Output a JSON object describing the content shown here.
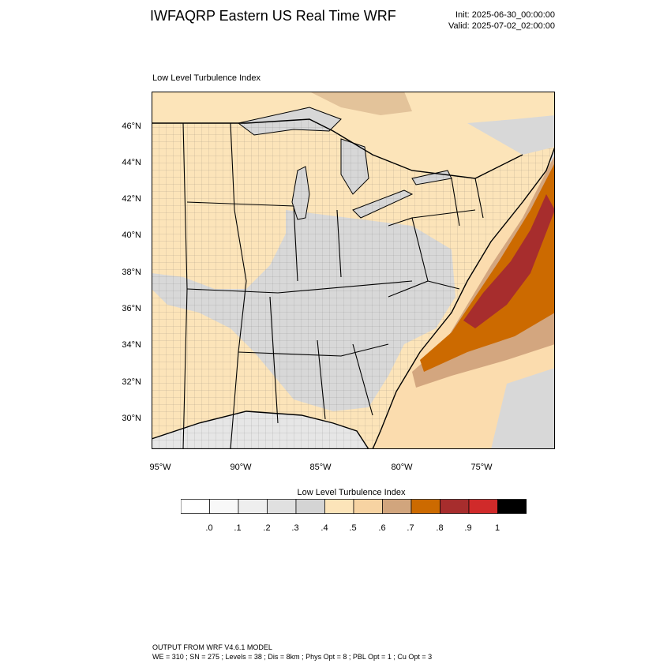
{
  "header": {
    "title": "IWFAQRP Eastern US Real Time WRF",
    "init": "Init: 2025-06-30_00:00:00",
    "valid": "Valid: 2025-07-02_02:00:00"
  },
  "map": {
    "subtitle": "Low Level Turbulence Index",
    "lat_labels": [
      "46°N",
      "44°N",
      "42°N",
      "40°N",
      "38°N",
      "36°N",
      "34°N",
      "32°N",
      "30°N"
    ],
    "lon_labels": [
      "95°W",
      "90°W",
      "85°W",
      "80°W",
      "75°W"
    ],
    "land_color": "#fce4b9",
    "water_color": "#fbdcae",
    "lake_color": "#d7d7d7",
    "low_color": "#d8d8d8",
    "high_colors": [
      "#cc6a00",
      "#a72d2d",
      "#d3a67f"
    ]
  },
  "colorbar": {
    "title": "Low Level Turbulence Index",
    "labels": [
      ".0",
      ".1",
      ".2",
      ".3",
      ".4",
      ".5",
      ".6",
      ".7",
      ".8",
      ".9",
      "1"
    ],
    "colors": [
      "#ffffff",
      "#f8f8f8",
      "#eeeeee",
      "#e0e0e0",
      "#d4d4d4",
      "#fce4b9",
      "#f7d3a2",
      "#d1a57d",
      "#cc6a00",
      "#a72d2d",
      "#d02a2a",
      "#000000"
    ]
  },
  "footer": {
    "line1": "OUTPUT FROM WRF V4.6.1 MODEL",
    "line2": "WE = 310 ; SN = 275 ; Levels = 38 ; Dis = 8km ; Phys Opt = 8 ; PBL Opt = 1 ; Cu Opt = 3"
  }
}
